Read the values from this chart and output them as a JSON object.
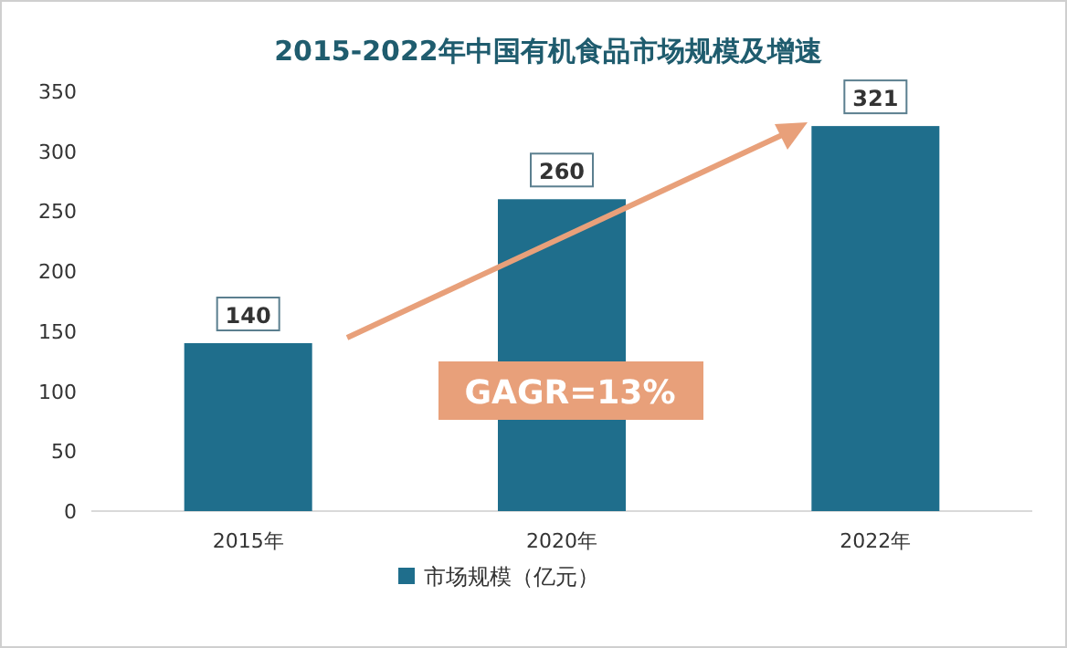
{
  "chart_data": {
    "type": "bar",
    "title": "2015-2022年中国有机食品市场规模及增速",
    "categories": [
      "2015年",
      "2020年",
      "2022年"
    ],
    "series": [
      {
        "name": "市场规模（亿元）",
        "color": "#1f6e8c",
        "values": [
          140,
          260,
          321
        ]
      }
    ],
    "ylim": [
      0,
      350
    ],
    "yticks": [
      0,
      50,
      100,
      150,
      200,
      250,
      300,
      350
    ],
    "data_labels": true,
    "legend": "bottom",
    "annotations": [
      "GAGR=13%"
    ]
  }
}
